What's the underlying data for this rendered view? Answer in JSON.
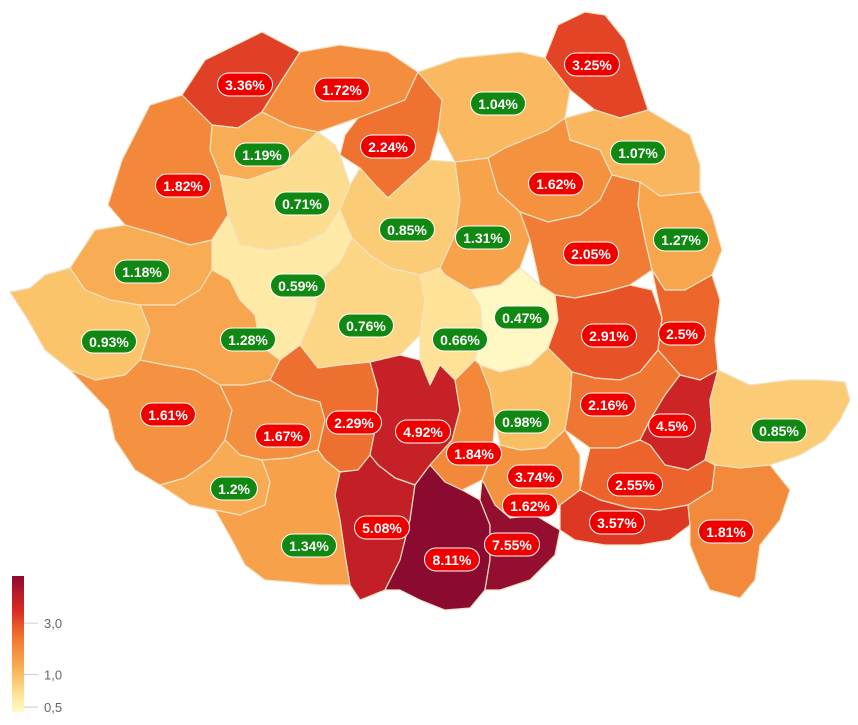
{
  "colors": {
    "high_pill": "#ee0000",
    "low_pill": "#118811",
    "scale": [
      "#fffbc8",
      "#fde49a",
      "#fbc36a",
      "#f7a14a",
      "#f28438",
      "#ea5a28",
      "#d82a22",
      "#b81a2a",
      "#8a0a30"
    ]
  },
  "legend": {
    "ticks": [
      {
        "value": 0.5,
        "label": "0,5"
      },
      {
        "value": 1.0,
        "label": "1,0"
      },
      {
        "value": 3.0,
        "label": "3,0"
      }
    ],
    "max": 8.2
  },
  "regions": [
    {
      "id": "satu-mare",
      "value": 3.36,
      "label": "3.36%"
    },
    {
      "id": "maramures",
      "value": 1.72,
      "label": "1.72%"
    },
    {
      "id": "suceava",
      "value": 1.04,
      "label": "1.04%"
    },
    {
      "id": "botosani",
      "value": 3.25,
      "label": "3.25%"
    },
    {
      "id": "salaj",
      "value": 1.19,
      "label": "1.19%"
    },
    {
      "id": "bistrita-nasaud",
      "value": 2.24,
      "label": "2.24%"
    },
    {
      "id": "iasi",
      "value": 1.07,
      "label": "1.07%"
    },
    {
      "id": "bihor",
      "value": 1.82,
      "label": "1.82%"
    },
    {
      "id": "cluj",
      "value": 0.71,
      "label": "0.71%"
    },
    {
      "id": "neamt",
      "value": 1.62,
      "label": "1.62%"
    },
    {
      "id": "mures",
      "value": 0.85,
      "label": "0.85%"
    },
    {
      "id": "harghita",
      "value": 1.31,
      "label": "1.31%"
    },
    {
      "id": "vaslui",
      "value": 1.27,
      "label": "1.27%"
    },
    {
      "id": "bacau",
      "value": 2.05,
      "label": "2.05%"
    },
    {
      "id": "arad",
      "value": 1.18,
      "label": "1.18%"
    },
    {
      "id": "alba",
      "value": 0.59,
      "label": "0.59%"
    },
    {
      "id": "timis",
      "value": 0.93,
      "label": "0.93%"
    },
    {
      "id": "hunedoara",
      "value": 1.28,
      "label": "1.28%"
    },
    {
      "id": "sibiu",
      "value": 0.76,
      "label": "0.76%"
    },
    {
      "id": "brasov",
      "value": 0.66,
      "label": "0.66%"
    },
    {
      "id": "covasna",
      "value": 0.47,
      "label": "0.47%"
    },
    {
      "id": "vrancea",
      "value": 2.91,
      "label": "2.91%"
    },
    {
      "id": "galati",
      "value": 2.5,
      "label": "2.5%"
    },
    {
      "id": "caras-severin",
      "value": 1.61,
      "label": "1.61%"
    },
    {
      "id": "gorj",
      "value": 1.67,
      "label": "1.67%"
    },
    {
      "id": "valcea",
      "value": 2.29,
      "label": "2.29%"
    },
    {
      "id": "arges",
      "value": 4.92,
      "label": "4.92%"
    },
    {
      "id": "dambovita",
      "value": 1.84,
      "label": "1.84%"
    },
    {
      "id": "prahova",
      "value": 0.98,
      "label": "0.98%"
    },
    {
      "id": "buzau",
      "value": 2.16,
      "label": "2.16%"
    },
    {
      "id": "braila",
      "value": 4.5,
      "label": "4.5%"
    },
    {
      "id": "tulcea",
      "value": 0.85,
      "label": "0.85%"
    },
    {
      "id": "mehedinti",
      "value": 1.2,
      "label": "1.2%"
    },
    {
      "id": "ialomita",
      "value": 2.55,
      "label": "2.55%"
    },
    {
      "id": "bucuresti",
      "value": 3.74,
      "label": "3.74%"
    },
    {
      "id": "ilfov",
      "value": 1.62,
      "label": "1.62%"
    },
    {
      "id": "olt",
      "value": 5.08,
      "label": "5.08%"
    },
    {
      "id": "calarasi",
      "value": 3.57,
      "label": "3.57%"
    },
    {
      "id": "constanta",
      "value": 1.81,
      "label": "1.81%"
    },
    {
      "id": "dolj",
      "value": 1.34,
      "label": "1.34%"
    },
    {
      "id": "teleorman",
      "value": 8.11,
      "label": "8.11%"
    },
    {
      "id": "giurgiu",
      "value": 7.55,
      "label": "7.55%"
    }
  ]
}
